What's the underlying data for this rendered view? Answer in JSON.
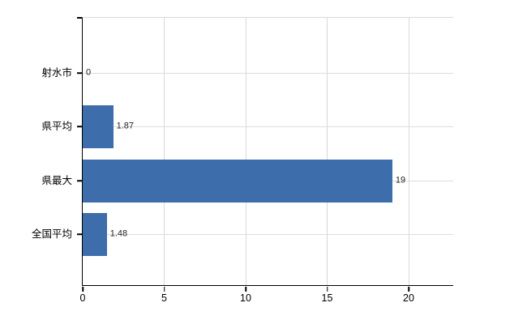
{
  "chart_data": {
    "type": "bar",
    "orientation": "horizontal",
    "categories": [
      "射水市",
      "県平均",
      "県最大",
      "全国平均"
    ],
    "values": [
      0,
      1.87,
      19,
      1.48
    ],
    "value_labels": [
      "0",
      "1.87",
      "19",
      "1.48"
    ],
    "x_ticks": [
      0,
      5,
      10,
      15,
      20
    ],
    "xlim": [
      0,
      22.8
    ],
    "grid": true,
    "legend": "none",
    "bar_color": "#3d6dab",
    "axis_color": "#000000",
    "vgrid_color": "#d9d9d9",
    "hgrid_color": "#dcdedc",
    "label_color": "#222222"
  }
}
